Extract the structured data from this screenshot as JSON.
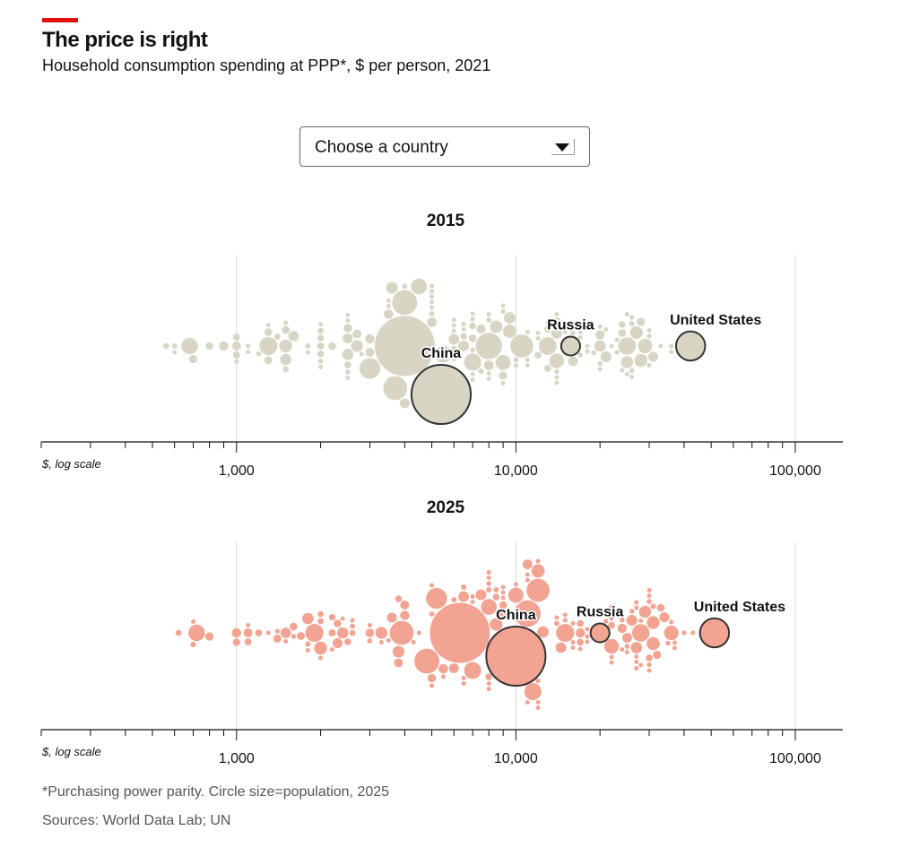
{
  "header": {
    "title": "The price is right",
    "subtitle": "Household consumption spending at PPP*, $ per person, 2021"
  },
  "dropdown": {
    "selected": "Choose a country"
  },
  "footer": {
    "note": "*Purchasing power parity. Circle size=population, 2025",
    "sources": "Sources: World Data Lab; UN"
  },
  "colors": {
    "2015": "#d9d5c4",
    "2025": "#f2a391",
    "highlight_stroke": "#333333",
    "accent": "#e3120b"
  },
  "chart_data": {
    "type": "scatter",
    "subtype": "beeswarm",
    "xscale": "log",
    "xlim": [
      200,
      148000
    ],
    "xlabel": "$, log scale",
    "ticks": {
      "major": [
        1000,
        10000,
        100000
      ],
      "major_labels": [
        "1,000",
        "10,000",
        "100,000"
      ]
    },
    "size_encoding": "population 2025 (millions)",
    "panels": [
      {
        "title": "2015",
        "year_key": 0
      },
      {
        "title": "2025",
        "year_key": 1
      }
    ],
    "highlighted": [
      {
        "label": "China",
        "values": [
          5400,
          10000
        ],
        "pop": 1410
      },
      {
        "label": "Russia",
        "values": [
          15700,
          20000
        ],
        "pop": 144
      },
      {
        "label": "United States",
        "values": [
          42200,
          51400
        ],
        "pop": 340
      }
    ],
    "points_fields": [
      "value_2015",
      "value_2025",
      "population_m"
    ],
    "points": [
      [
        4000,
        6300,
        1450
      ],
      [
        8000,
        11000,
        280
      ],
      [
        4000,
        4800,
        250
      ],
      [
        3700,
        3900,
        230
      ],
      [
        10500,
        12000,
        212
      ],
      [
        3000,
        5200,
        175
      ],
      [
        1300,
        1900,
        130
      ],
      [
        13000,
        15000,
        130
      ],
      [
        25000,
        28000,
        123
      ],
      [
        7000,
        11500,
        118
      ],
      [
        5500,
        7000,
        116
      ],
      [
        680,
        720,
        110
      ],
      [
        4500,
        8000,
        101
      ],
      [
        9000,
        10000,
        92
      ],
      [
        14000,
        22000,
        87
      ],
      [
        29000,
        36000,
        84
      ],
      [
        9500,
        12000,
        72
      ],
      [
        28000,
        31000,
        69
      ],
      [
        27000,
        31000,
        66
      ],
      [
        1500,
        2000,
        68
      ],
      [
        8500,
        8500,
        64
      ],
      [
        25000,
        29000,
        59
      ],
      [
        2700,
        3300,
        57
      ],
      [
        3600,
        3800,
        55
      ],
      [
        9500,
        12500,
        53
      ],
      [
        20000,
        27000,
        52
      ],
      [
        2500,
        2400,
        51
      ],
      [
        1500,
        1800,
        51
      ],
      [
        21000,
        26000,
        48
      ],
      [
        6500,
        7500,
        47
      ],
      [
        6000,
        6500,
        46
      ],
      [
        14000,
        14500,
        45
      ],
      [
        1600,
        1500,
        43
      ],
      [
        8000,
        11000,
        38
      ],
      [
        31000,
        34000,
        40
      ],
      [
        16000,
        25000,
        38
      ],
      [
        5000,
        6000,
        38
      ],
      [
        20000,
        24000,
        34
      ],
      [
        4000,
        3600,
        39
      ],
      [
        3500,
        5500,
        36
      ],
      [
        7500,
        9000,
        34
      ],
      [
        14000,
        17000,
        35
      ],
      [
        900,
        1000,
        35
      ],
      [
        3000,
        4000,
        35
      ],
      [
        2500,
        2300,
        40
      ],
      [
        2700,
        3800,
        31
      ],
      [
        9000,
        5000,
        28
      ],
      [
        1000,
        1100,
        32
      ],
      [
        2500,
        3000,
        29
      ],
      [
        3000,
        4000,
        32
      ],
      [
        1300,
        1400,
        26
      ],
      [
        28000,
        32000,
        27
      ],
      [
        700,
        800,
        27
      ],
      [
        24000,
        33000,
        24
      ],
      [
        7000,
        9000,
        23
      ],
      [
        1300,
        1600,
        24
      ],
      [
        1500,
        1700,
        25
      ],
      [
        13000,
        17000,
        20
      ],
      [
        13000,
        22000,
        19
      ],
      [
        12000,
        17000,
        20
      ],
      [
        800,
        1000,
        22
      ],
      [
        2000,
        2200,
        21
      ],
      [
        2200,
        2300,
        24
      ],
      [
        7000,
        8000,
        18
      ],
      [
        24000,
        30000,
        18
      ],
      [
        2000,
        2500,
        18
      ],
      [
        6500,
        8500,
        18
      ],
      [
        1000,
        1200,
        20
      ],
      [
        1000,
        1100,
        19
      ],
      [
        2000,
        2200,
        17
      ],
      [
        2500,
        3800,
        18
      ],
      [
        600,
        700,
        12
      ],
      [
        1400,
        2000,
        14
      ],
      [
        1500,
        2000,
        15
      ],
      [
        560,
        620,
        14
      ],
      [
        2000,
        2600,
        14
      ],
      [
        5000,
        6500,
        12
      ],
      [
        7500,
        8000,
        12
      ],
      [
        1800,
        1800,
        12
      ],
      [
        26000,
        31000,
        12
      ],
      [
        8000,
        8500,
        11
      ],
      [
        6000,
        6000,
        11
      ],
      [
        10000,
        14000,
        11
      ],
      [
        26000,
        30000,
        10.6
      ],
      [
        16000,
        24000,
        10.8
      ],
      [
        17000,
        22000,
        10.3
      ],
      [
        7000,
        8000,
        10.3
      ],
      [
        19000,
        25000,
        10.4
      ],
      [
        14000,
        21000,
        9.6
      ],
      [
        2000,
        3000,
        10.6
      ],
      [
        30000,
        35000,
        10
      ],
      [
        9000,
        12000,
        9
      ],
      [
        4000,
        5000,
        10.8
      ],
      [
        20000,
        26000,
        9.5
      ],
      [
        2500,
        2600,
        10.5
      ],
      [
        26000,
        30000,
        9
      ],
      [
        36000,
        40000,
        9
      ],
      [
        1100,
        1400,
        8.6
      ],
      [
        1200,
        1600,
        9.5
      ],
      [
        3500,
        4500,
        7.8
      ],
      [
        7000,
        9000,
        7
      ],
      [
        8000,
        10000,
        7
      ],
      [
        10000,
        15000,
        6.7
      ],
      [
        2500,
        3500,
        7.2
      ],
      [
        11000,
        18000,
        6.7
      ],
      [
        6500,
        8000,
        6.4
      ],
      [
        6000,
        7000,
        7.5
      ],
      [
        3500,
        4300,
        7
      ],
      [
        23000,
        27000,
        6
      ],
      [
        25000,
        30000,
        6
      ],
      [
        24000,
        27000,
        5.6
      ],
      [
        30000,
        37000,
        5.5
      ],
      [
        12000,
        7000,
        5.8
      ],
      [
        2500,
        2600,
        6.3
      ],
      [
        600,
        700,
        5.4
      ],
      [
        1100,
        1300,
        5.6
      ],
      [
        22000,
        30000,
        5.3
      ],
      [
        11000,
        14000,
        5.1
      ],
      [
        23000,
        27000,
        5.2
      ],
      [
        2800,
        3300,
        5.2
      ],
      [
        14000,
        15000,
        5.3
      ],
      [
        25000,
        27000,
        4.3
      ],
      [
        12000,
        18000,
        4.5
      ],
      [
        14000,
        22000,
        3.8
      ],
      [
        6000,
        11000,
        3.8
      ],
      [
        1000,
        1100,
        3.8
      ],
      [
        6000,
        8000,
        3.5
      ],
      [
        14000,
        17000,
        3.4
      ],
      [
        9000,
        12000,
        3.2
      ],
      [
        6000,
        11000,
        3
      ],
      [
        8000,
        12000,
        2.8
      ],
      [
        18000,
        28000,
        2.8
      ],
      [
        7000,
        8000,
        2.8
      ],
      [
        26000,
        30000,
        2.9
      ],
      [
        7000,
        11000,
        2.4
      ],
      [
        6500,
        6500,
        2.6
      ],
      [
        1500,
        1800,
        2.8
      ],
      [
        8000,
        9000,
        2.5
      ],
      [
        5000,
        5000,
        2.5
      ],
      [
        2000,
        2200,
        2.3
      ],
      [
        18000,
        25000,
        2.1
      ],
      [
        9000,
        12000,
        1.8
      ],
      [
        15000,
        22000,
        1.9
      ],
      [
        1300,
        1500,
        2.2
      ],
      [
        20000,
        22000,
        1.6
      ],
      [
        5000,
        5000,
        1.9
      ],
      [
        16000,
        16000,
        1.5
      ],
      [
        17000,
        24000,
        1.4
      ],
      [
        13000,
        18000,
        1.3
      ],
      [
        1800,
        2000,
        1.4
      ],
      [
        5000,
        5500,
        1.2
      ],
      [
        2500,
        3000,
        1.2
      ],
      [
        7000,
        8000,
        0.9
      ],
      [
        21000,
        28000,
        1.3
      ],
      [
        2000,
        2400,
        0.9
      ],
      [
        5000,
        6500,
        0.8
      ],
      [
        5000,
        9000,
        0.8
      ],
      [
        36000,
        43000,
        0.7
      ],
      [
        11000,
        16000,
        0.6
      ],
      [
        20000,
        27000,
        0.5
      ],
      [
        30000,
        36000,
        0.4
      ],
      [
        15000,
        16000,
        0.45
      ],
      [
        33000,
        37000,
        7.5
      ],
      [
        17000,
        22000,
        5.4
      ]
    ]
  }
}
